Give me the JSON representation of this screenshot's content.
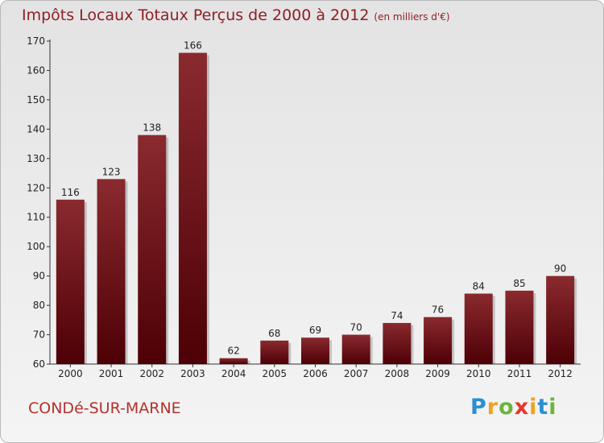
{
  "header": {
    "title": "Impôts Locaux Totaux Perçus de 2000 à 2012",
    "unit": "(en milliers d'€)"
  },
  "footer": {
    "commune": "CONDé-SUR-MARNE"
  },
  "logo": {
    "text": "Proxiti",
    "letters": [
      {
        "ch": "P",
        "color": "#2a8fd4"
      },
      {
        "ch": "r",
        "color": "#f0a21e"
      },
      {
        "ch": "o",
        "color": "#6db33f"
      },
      {
        "ch": "x",
        "color": "#e6352b"
      },
      {
        "ch": "i",
        "color": "#f0a21e"
      },
      {
        "ch": "t",
        "color": "#2a8fd4"
      },
      {
        "ch": "i",
        "color": "#6db33f"
      }
    ]
  },
  "colors": {
    "bar_top": "#8a2a2f",
    "bar_bottom": "#4d0005",
    "title": "#8e1f26",
    "commune": "#b5302b"
  },
  "chart_data": {
    "type": "bar",
    "title": "Impôts Locaux Totaux Perçus de 2000 à 2012",
    "subtitle": "(en milliers d'€)",
    "categories": [
      "2000",
      "2001",
      "2002",
      "2003",
      "2004",
      "2005",
      "2006",
      "2007",
      "2008",
      "2009",
      "2010",
      "2011",
      "2012"
    ],
    "values": [
      116,
      123,
      138,
      166,
      62,
      68,
      69,
      70,
      74,
      76,
      84,
      85,
      90
    ],
    "ylim": [
      60,
      170
    ],
    "yticks": [
      60,
      70,
      80,
      90,
      100,
      110,
      120,
      130,
      140,
      150,
      160,
      170
    ],
    "grid": false,
    "data_labels": true
  }
}
